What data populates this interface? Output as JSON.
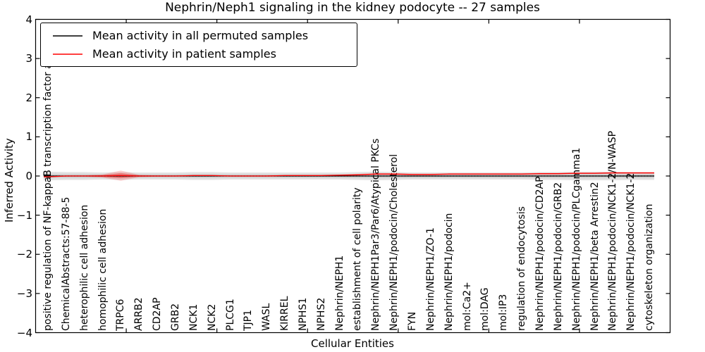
{
  "header": {
    "title": "Nephrin/Neph1 signaling in the kidney podocyte -- 27 samples"
  },
  "axes": {
    "xlabel": "Cellular Entities",
    "ylabel": "Inferred Activity",
    "ytick_labels": [
      "4",
      "3",
      "2",
      "1",
      "0",
      "−1",
      "−2",
      "−3",
      "−4"
    ]
  },
  "legend": {
    "position": "upper left",
    "items": [
      {
        "label": "Mean activity in all permuted samples",
        "color": "#000000"
      },
      {
        "label": "Mean activity in patient samples",
        "color": "#ff0000"
      }
    ]
  },
  "chart_data": {
    "type": "line",
    "title": "Nephrin/Neph1 signaling in the kidney podocyte -- 27 samples",
    "xlabel": "Cellular Entities",
    "ylabel": "Inferred Activity",
    "ylim": [
      -4,
      4
    ],
    "ytick_values": [
      4,
      3,
      2,
      1,
      0,
      -1,
      -2,
      -3,
      -4
    ],
    "grid": false,
    "legend_position": "upper left",
    "zero_line": {
      "style": "dotted",
      "color": "#000000",
      "y": 0
    },
    "categories": [
      "positive regulation of NF-kappaB transcription factor activity",
      "ChemicalAbstracts:57-88-5",
      "heterophilic cell adhesion",
      "homophilic cell adhesion",
      "TRPC6",
      "ARRB2",
      "CD2AP",
      "GRB2",
      "NCK1",
      "NCK2",
      "PLCG1",
      "TJP1",
      "WASL",
      "KIRREL",
      "NPHS1",
      "NPHS2",
      "Nephrin/NEPH1",
      "establishment of cell polarity",
      "Nephrin/NEPH1Par3/Par6/Atypical PKCs",
      "Nephrin/NEPH1/podocin/Cholesterol",
      "FYN",
      "Nephrin/NEPH1/ZO-1",
      "Nephrin/NEPH1/podocin",
      "mol:Ca2+",
      "mol:DAG",
      "mol:IP3",
      "regulation of endocytosis",
      "Nephrin/NEPH1/podocin/CD2AP",
      "Nephrin/NEPH1/podocin/GRB2",
      "Nephrin/NEPH1/podocin/PLCgamma1",
      "Nephrin/NEPH1/beta Arrestin2",
      "Nephrin/NEPH1/podocin/NCK1-2/N-WASP",
      "Nephrin/NEPH1/podocin/NCK1-2",
      "cytoskeleton organization"
    ],
    "series": [
      {
        "name": "Mean activity in all permuted samples",
        "color": "#000000",
        "values": [
          0,
          0,
          0,
          0,
          0,
          0,
          0,
          0,
          0,
          0,
          0,
          0,
          0,
          0,
          0,
          0,
          0,
          0,
          0,
          0,
          0,
          0,
          0,
          0,
          0,
          0,
          0,
          0,
          0,
          0,
          0,
          0,
          0,
          0
        ]
      },
      {
        "name": "Mean activity in patient samples",
        "color": "#ff0000",
        "values": [
          -0.02,
          0,
          0,
          0,
          0.01,
          0,
          0,
          0,
          0.01,
          0.01,
          0,
          0,
          0,
          0.01,
          0.01,
          0.01,
          0.02,
          0.03,
          0.05,
          0.05,
          0.04,
          0.04,
          0.05,
          0.05,
          0.05,
          0.05,
          0.05,
          0.06,
          0.06,
          0.07,
          0.07,
          0.08,
          0.08,
          0.08
        ]
      }
    ],
    "bands": [
      {
        "name": "permuted samples spread",
        "series": "Mean activity in all permuted samples",
        "color": "#e3e3e3",
        "half_widths": [
          0.11,
          0.1,
          0.1,
          0.09,
          0.1,
          0.09,
          0.09,
          0.09,
          0.1,
          0.1,
          0.09,
          0.09,
          0.09,
          0.09,
          0.09,
          0.09,
          0.09,
          0.1,
          0.11,
          0.1,
          0.09,
          0.09,
          0.09,
          0.09,
          0.09,
          0.09,
          0.09,
          0.1,
          0.1,
          0.11,
          0.11,
          0.11,
          0.1,
          0.1
        ]
      },
      {
        "name": "patient samples spread",
        "series": "Mean activity in patient samples",
        "color": "#ff9999",
        "half_widths": [
          0.015,
          0.015,
          0.015,
          0.04,
          0.13,
          0.03,
          0.015,
          0.015,
          0.015,
          0.015,
          0.015,
          0.015,
          0.015,
          0.015,
          0.015,
          0.015,
          0.015,
          0.02,
          0.02,
          0.02,
          0.015,
          0.015,
          0.015,
          0.015,
          0.015,
          0.015,
          0.015,
          0.02,
          0.02,
          0.02,
          0.02,
          0.02,
          0.02,
          0.02
        ]
      }
    ]
  }
}
